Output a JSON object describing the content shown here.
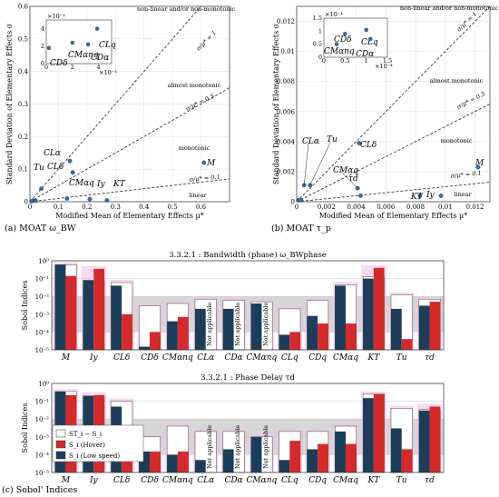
{
  "chart_data": [
    {
      "type": "scatter",
      "panel_label": "(a) MOAT ω_BW",
      "xlabel": "Modified Mean of Elementary Effects μ*",
      "ylabel": "Standard Deviation of Elementary Effects σ",
      "xlim": [
        0,
        0.7
      ],
      "ylim": [
        0,
        0.6
      ],
      "xticks": [
        "0",
        "0.1",
        "0.2",
        "0.3",
        "0.4",
        "0.5",
        "0.6"
      ],
      "yticks": [
        "0",
        "0.1",
        "0.2",
        "0.3",
        "0.4",
        "0.5",
        "0.6"
      ],
      "region_labels": [
        "non-linear and/or non-monotonic",
        "almost monotonic",
        "monotonic",
        "linear"
      ],
      "line_labels": [
        "σ/μ* = 1",
        "σ/μ* = 0.5",
        "σ/μ* = 0.1"
      ],
      "line_ratios": [
        1,
        0.5,
        0.1
      ],
      "points": [
        {
          "label": "M",
          "x": 0.61,
          "y": 0.12
        },
        {
          "label": "CLα",
          "x": 0.14,
          "y": 0.125
        },
        {
          "label": "CLδ",
          "x": 0.15,
          "y": 0.09
        },
        {
          "label": "Tu",
          "x": 0.04,
          "y": 0.04
        },
        {
          "label": "CMαq",
          "x": 0.13,
          "y": 0.01
        },
        {
          "label": "Iy",
          "x": 0.21,
          "y": 0.008
        },
        {
          "label": "KT",
          "x": 0.27,
          "y": 0.004
        },
        {
          "label": "",
          "x": 0.01,
          "y": 0.003
        },
        {
          "label": "",
          "x": 0.02,
          "y": 0.003
        },
        {
          "label": "",
          "x": 0.005,
          "y": 0.001
        }
      ],
      "inset": {
        "xticks": [
          "0",
          "2",
          "4"
        ],
        "x_exponent": "×10⁻³",
        "yticks": [
          "0",
          "2",
          "4"
        ],
        "y_exponent": "×10⁻³",
        "points": [
          {
            "label": "CDδ",
            "x": 0.2,
            "y": 1.8
          },
          {
            "label": "CMαnq",
            "x": 2.0,
            "y": 2.4
          },
          {
            "label": "CDα",
            "x": 3.2,
            "y": 2.2
          },
          {
            "label": "CLq",
            "x": 3.9,
            "y": 4.0
          }
        ]
      }
    },
    {
      "type": "scatter",
      "panel_label": "(b) MOAT τ_p",
      "xlabel": "Modified Mean of Elementary Effects μ*",
      "ylabel": "Standard Deviation of Elementary Effects σ",
      "xlim": [
        0,
        0.013
      ],
      "ylim": [
        0,
        0.013
      ],
      "xticks": [
        "0",
        "0.002",
        "0.004",
        "0.006",
        "0.008",
        "0.01",
        "0.012"
      ],
      "yticks": [
        "0",
        "0.002",
        "0.004",
        "0.006",
        "0.008",
        "0.01",
        "0.012"
      ],
      "region_labels": [
        "non-linear and/or non-monotonic",
        "almost monotonic",
        "monotonic",
        "linear"
      ],
      "line_labels": [
        "σ/μ* = 1",
        "σ/μ* = 0.5",
        "σ/μ* = 0.1"
      ],
      "line_ratios": [
        1,
        0.5,
        0.1
      ],
      "points": [
        {
          "label": "M",
          "x": 0.0122,
          "y": 0.0023
        },
        {
          "label": "CLδ",
          "x": 0.0042,
          "y": 0.0039
        },
        {
          "label": "CLα",
          "x": 0.0005,
          "y": 0.0011
        },
        {
          "label": "Tu",
          "x": 0.0009,
          "y": 0.0011
        },
        {
          "label": "CMαq",
          "x": 0.0041,
          "y": 0.0009
        },
        {
          "label": "τd",
          "x": 0.0043,
          "y": 0.0004
        },
        {
          "label": "KT",
          "x": 0.0083,
          "y": 0.0004
        },
        {
          "label": "Iy",
          "x": 0.0097,
          "y": 0.0004
        },
        {
          "label": "",
          "x": 0.0001,
          "y": 0.0001
        },
        {
          "label": "",
          "x": 0.0003,
          "y": 0.0001
        }
      ],
      "inset": {
        "xticks": [
          "0",
          "0.5",
          "1",
          "1.5"
        ],
        "x_exponent": "×10⁻⁴",
        "yticks": [
          "0",
          "0.5",
          "1",
          "1.5"
        ],
        "y_exponent": "×10⁻⁴",
        "points": [
          {
            "label": "CMαnq",
            "x": 0.3,
            "y": 0.5
          },
          {
            "label": "CDδ",
            "x": 0.5,
            "y": 0.9
          },
          {
            "label": "CLq",
            "x": 1.0,
            "y": 1.05
          },
          {
            "label": "CDα",
            "x": 1.1,
            "y": 0.7
          }
        ]
      }
    },
    {
      "type": "bar",
      "subtitle": "3.3.2.1 : Bandwidth (phase) ω_BWphase",
      "ylabel": "Sobol Indices",
      "yscale": "log",
      "ylim_exp": [
        -5,
        0
      ],
      "yticks": [
        "10⁻⁵",
        "10⁻⁴",
        "10⁻³",
        "10⁻²",
        "10⁻¹",
        "10⁰"
      ],
      "categories": [
        "M",
        "Iy",
        "CLδ",
        "CDδ",
        "CMαnq",
        "CLα",
        "CDα",
        "CMαnq",
        "CLq",
        "CDq",
        "CMαq",
        "KT",
        "Tu",
        "τd"
      ],
      "not_applicable": [
        false,
        false,
        false,
        false,
        false,
        true,
        true,
        true,
        false,
        false,
        false,
        false,
        false,
        false
      ],
      "series": [
        {
          "name": "ST_i − S_i",
          "values": [
            0.6,
            0.08,
            0.06,
            0.003,
            0.004,
            0.007,
            0.006,
            0.005,
            0.002,
            0.006,
            0.045,
            0.13,
            0.012,
            0.007
          ]
        },
        {
          "name": "S_i (Hover)",
          "values": [
            0.14,
            0.35,
            0.001,
            0.0001,
            0.0007,
            null,
            null,
            null,
            0.0001,
            0.0003,
            0.0003,
            0.4,
            4e-05,
            0.005
          ]
        },
        {
          "name": "S_i (Low speed)",
          "values": [
            0.6,
            0.08,
            0.04,
            1.5e-05,
            0.0004,
            0.002,
            0.002,
            0.004,
            7e-05,
            0.0008,
            0.04,
            0.1,
            0.002,
            0.003
          ]
        }
      ]
    },
    {
      "type": "bar",
      "subtitle": "3.3.2.1 : Phase Delay τd",
      "ylabel": "Sobol Indices",
      "yscale": "log",
      "ylim_exp": [
        -5,
        0
      ],
      "yticks": [
        "10⁻⁵",
        "10⁻⁴",
        "10⁻³",
        "10⁻²",
        "10⁻¹",
        "10⁰"
      ],
      "categories": [
        "M",
        "Iy",
        "CLδ",
        "CDδ",
        "CMαnq",
        "CLα",
        "CDα",
        "CMαnq",
        "CLq",
        "CDq",
        "CMαq",
        "KT",
        "Tu",
        "τd"
      ],
      "not_applicable": [
        false,
        false,
        false,
        false,
        false,
        true,
        true,
        true,
        false,
        false,
        false,
        false,
        false,
        false
      ],
      "series": [
        {
          "name": "ST_i − S_i",
          "values": [
            0.35,
            0.2,
            0.1,
            0.001,
            0.004,
            0.002,
            0.002,
            0.001,
            0.002,
            0.002,
            0.004,
            0.25,
            0.04,
            0.035
          ]
        },
        {
          "name": "S_i (Hover)",
          "values": [
            0.22,
            0.22,
            0.0006,
            0.00015,
            0.00015,
            null,
            null,
            null,
            0.0006,
            0.0004,
            0.0004,
            0.25,
            0.0002,
            0.05
          ]
        },
        {
          "name": "S_i (Low speed)",
          "values": [
            0.35,
            0.2,
            0.05,
            0.00015,
            0.0001,
            5e-05,
            0.0002,
            0.001,
            5e-05,
            0.0002,
            0.002,
            0.15,
            0.003,
            0.03
          ]
        }
      ]
    }
  ],
  "panel_c_label": "(c) Sobol' Indices",
  "not_applicable_text": "Not applicable",
  "colors": {
    "white": "#ffffff",
    "hover": "#d42a2a",
    "lowspeed": "#1c3d5a",
    "pink": "#f6bfe6",
    "band": "#d6d6d6"
  }
}
